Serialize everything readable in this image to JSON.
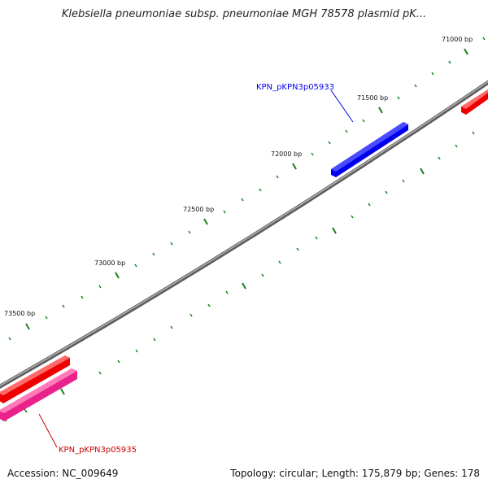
{
  "title": "Klebsiella pneumoniae subsp. pneumoniae MGH 78578 plasmid pK...",
  "footer": {
    "accession": "Accession: NC_009649",
    "summary": "Topology: circular; Length: 175,879 bp; Genes: 178"
  },
  "colors": {
    "backbone": "#7d7d7d",
    "tick": "#1a7f1a",
    "forward_gene": "#0000ee",
    "reverse_gene": "#ee0000",
    "reverse_gene_alt": "#ee2b8c"
  },
  "ticks": [
    {
      "label": "71000 bp"
    },
    {
      "label": "71500 bp"
    },
    {
      "label": "72000 bp"
    },
    {
      "label": "72500 bp"
    },
    {
      "label": "73000 bp"
    },
    {
      "label": "73500 bp"
    }
  ],
  "features": [
    {
      "name": "KPN_pKPN3p05933",
      "strand": "forward",
      "color": "#0000ee"
    },
    {
      "name": "",
      "strand": "reverse",
      "color": "#ee0000"
    },
    {
      "name": "KPN_pKPN3p05935",
      "strand": "reverse",
      "color": "#cc0000"
    }
  ]
}
